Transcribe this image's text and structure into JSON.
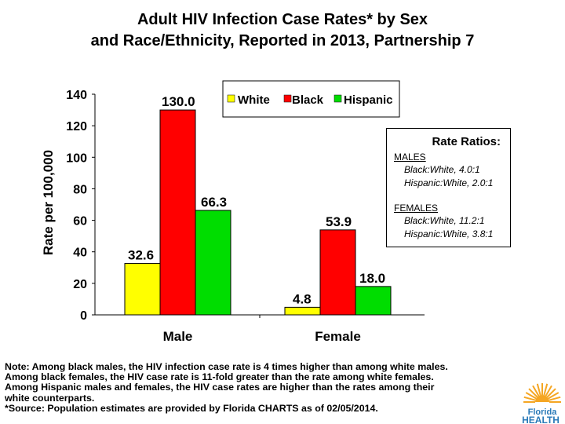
{
  "title_line1": "Adult HIV Infection Case Rates* by Sex",
  "title_line2": "and Race/Ethnicity, Reported in 2013, Partnership 7",
  "chart_data": {
    "type": "bar",
    "categories": [
      "Male",
      "Female"
    ],
    "series": [
      {
        "name": "White",
        "color": "#ffff00",
        "values": [
          32.6,
          4.8
        ],
        "labels": [
          "32.6",
          "4.8"
        ]
      },
      {
        "name": "Black",
        "color": "#ff0000",
        "values": [
          130.0,
          53.9
        ],
        "labels": [
          "130.0",
          "53.9"
        ]
      },
      {
        "name": "Hispanic",
        "color": "#00dd00",
        "values": [
          66.3,
          18.0
        ],
        "labels": [
          "66.3",
          "18.0"
        ]
      }
    ],
    "ylabel": "Rate per 100,000",
    "ylim": [
      0,
      140
    ],
    "yticks": [
      0,
      20,
      40,
      60,
      80,
      100,
      120,
      140
    ],
    "ytick_labels": [
      "0",
      "20",
      "40",
      "60",
      "80",
      "100",
      "120",
      "140"
    ],
    "legend": "top"
  },
  "ratios": {
    "title": "Rate Ratios:",
    "males_head": "MALES",
    "males_black": "Black:White, 4.0:1",
    "males_hisp": "Hispanic:White, 2.0:1",
    "females_head": "FEMALES",
    "females_black": "Black:White, 11.2:1",
    "females_hisp": "Hispanic:White, 3.8:1"
  },
  "note": {
    "l1": "Note: Among black males, the HIV infection case rate is 4 times higher than among white males.",
    "l2": "Among black females, the HIV case rate is 11-fold greater than the rate among white females.",
    "l3": "Among Hispanic males and females, the HIV case rates are higher than the rates among their",
    "l4": "white counterparts.",
    "l5": "*Source: Population estimates are provided by Florida CHARTS as of 02/05/2014."
  },
  "logo": {
    "line1": "Florida",
    "line2": "HEALTH",
    "sun_color": "#f5a623",
    "text_color": "#2a7ab8"
  }
}
